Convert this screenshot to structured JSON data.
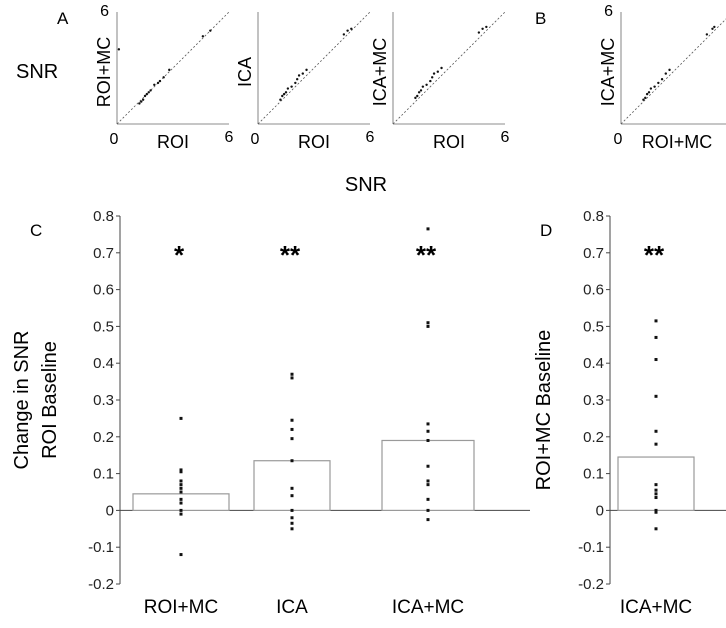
{
  "panel_labels": {
    "a": "A",
    "b": "B",
    "c": "C",
    "d": "D"
  },
  "snr_row_label": "SNR",
  "snr_center_label": "SNR",
  "scatter_panels": [
    {
      "letter": "A",
      "xlabel": "ROI",
      "ylabel": "ROI+MC",
      "x_tick_min": "0",
      "x_tick_max": "6",
      "y_tick_max": "6",
      "range": [
        0,
        6
      ],
      "points": [
        [
          1.2,
          1.1
        ],
        [
          1.3,
          1.2
        ],
        [
          1.4,
          1.3
        ],
        [
          1.5,
          1.5
        ],
        [
          1.6,
          1.6
        ],
        [
          1.7,
          1.7
        ],
        [
          1.8,
          1.8
        ],
        [
          2.0,
          2.1
        ],
        [
          2.2,
          2.2
        ],
        [
          2.3,
          2.3
        ],
        [
          2.5,
          2.5
        ],
        [
          2.8,
          2.9
        ],
        [
          4.6,
          4.7
        ],
        [
          5.0,
          5.0
        ],
        [
          0.1,
          4.0
        ]
      ]
    },
    {
      "letter": "A",
      "xlabel": "ROI",
      "ylabel": "ICA",
      "x_tick_min": "0",
      "x_tick_max": "6",
      "y_tick_max": "",
      "range": [
        0,
        6
      ],
      "points": [
        [
          1.2,
          1.3
        ],
        [
          1.3,
          1.5
        ],
        [
          1.4,
          1.6
        ],
        [
          1.5,
          1.7
        ],
        [
          1.6,
          1.9
        ],
        [
          1.8,
          2.0
        ],
        [
          2.0,
          2.2
        ],
        [
          2.1,
          2.4
        ],
        [
          2.2,
          2.6
        ],
        [
          2.4,
          2.7
        ],
        [
          2.6,
          2.9
        ],
        [
          4.6,
          4.8
        ],
        [
          4.8,
          5.0
        ],
        [
          5.0,
          5.1
        ]
      ]
    },
    {
      "letter": "A",
      "xlabel": "ROI",
      "ylabel": "ICA+MC",
      "x_tick_min": "",
      "x_tick_max": "6",
      "y_tick_max": "",
      "range": [
        0,
        6
      ],
      "points": [
        [
          1.2,
          1.4
        ],
        [
          1.3,
          1.5
        ],
        [
          1.4,
          1.7
        ],
        [
          1.5,
          1.8
        ],
        [
          1.6,
          2.0
        ],
        [
          1.8,
          2.1
        ],
        [
          2.0,
          2.3
        ],
        [
          2.1,
          2.5
        ],
        [
          2.2,
          2.7
        ],
        [
          2.4,
          2.8
        ],
        [
          2.6,
          3.0
        ],
        [
          4.6,
          4.9
        ],
        [
          4.8,
          5.1
        ],
        [
          5.0,
          5.2
        ]
      ]
    },
    {
      "letter": "B",
      "xlabel": "ROI+MC",
      "ylabel": "ICA+MC",
      "x_tick_min": "0",
      "x_tick_max": "",
      "y_tick_max": "6",
      "range": [
        0,
        6
      ],
      "points": [
        [
          1.2,
          1.3
        ],
        [
          1.3,
          1.4
        ],
        [
          1.4,
          1.6
        ],
        [
          1.5,
          1.7
        ],
        [
          1.6,
          1.9
        ],
        [
          1.8,
          2.0
        ],
        [
          2.0,
          2.2
        ],
        [
          2.2,
          2.4
        ],
        [
          2.4,
          2.7
        ],
        [
          2.6,
          2.9
        ],
        [
          4.6,
          4.8
        ],
        [
          4.9,
          5.1
        ],
        [
          5.0,
          5.2
        ]
      ]
    }
  ],
  "chart_data": [
    {
      "type": "bar",
      "panel": "C",
      "ylabel_line1": "Change in SNR",
      "ylabel_line2": "ROI Baseline",
      "ylim": [
        -0.2,
        0.8
      ],
      "yticks": [
        "-0.2",
        "-0.1",
        "0",
        "0.1",
        "0.2",
        "0.3",
        "0.4",
        "0.5",
        "0.6",
        "0.7",
        "0.8"
      ],
      "categories": [
        "ROI+MC",
        "ICA",
        "ICA+MC"
      ],
      "values": [
        0.045,
        0.135,
        0.19
      ],
      "significance": [
        "*",
        "**",
        "**"
      ],
      "points": [
        [
          0.25,
          0.11,
          0.105,
          0.08,
          0.07,
          0.06,
          0.05,
          0.03,
          0.02,
          0.0,
          -0.01,
          -0.12
        ],
        [
          0.37,
          0.36,
          0.245,
          0.22,
          0.195,
          0.135,
          0.06,
          0.04,
          0.0,
          -0.02,
          -0.035,
          -0.05
        ],
        [
          0.765,
          0.51,
          0.5,
          0.235,
          0.215,
          0.19,
          0.12,
          0.08,
          0.07,
          0.03,
          0.0,
          -0.025
        ]
      ]
    },
    {
      "type": "bar",
      "panel": "D",
      "ylabel": "ROI+MC Baseline",
      "ylim": [
        -0.2,
        0.8
      ],
      "yticks": [
        "-0.2",
        "-0.1",
        "0",
        "0.1",
        "0.2",
        "0.3",
        "0.4",
        "0.5",
        "0.6",
        "0.7",
        "0.8"
      ],
      "categories": [
        "ICA+MC"
      ],
      "values": [
        0.145
      ],
      "significance": [
        "**"
      ],
      "points": [
        [
          0.515,
          0.47,
          0.41,
          0.31,
          0.215,
          0.18,
          0.07,
          0.055,
          0.045,
          0.035,
          0.0,
          -0.005,
          -0.05
        ]
      ]
    }
  ]
}
